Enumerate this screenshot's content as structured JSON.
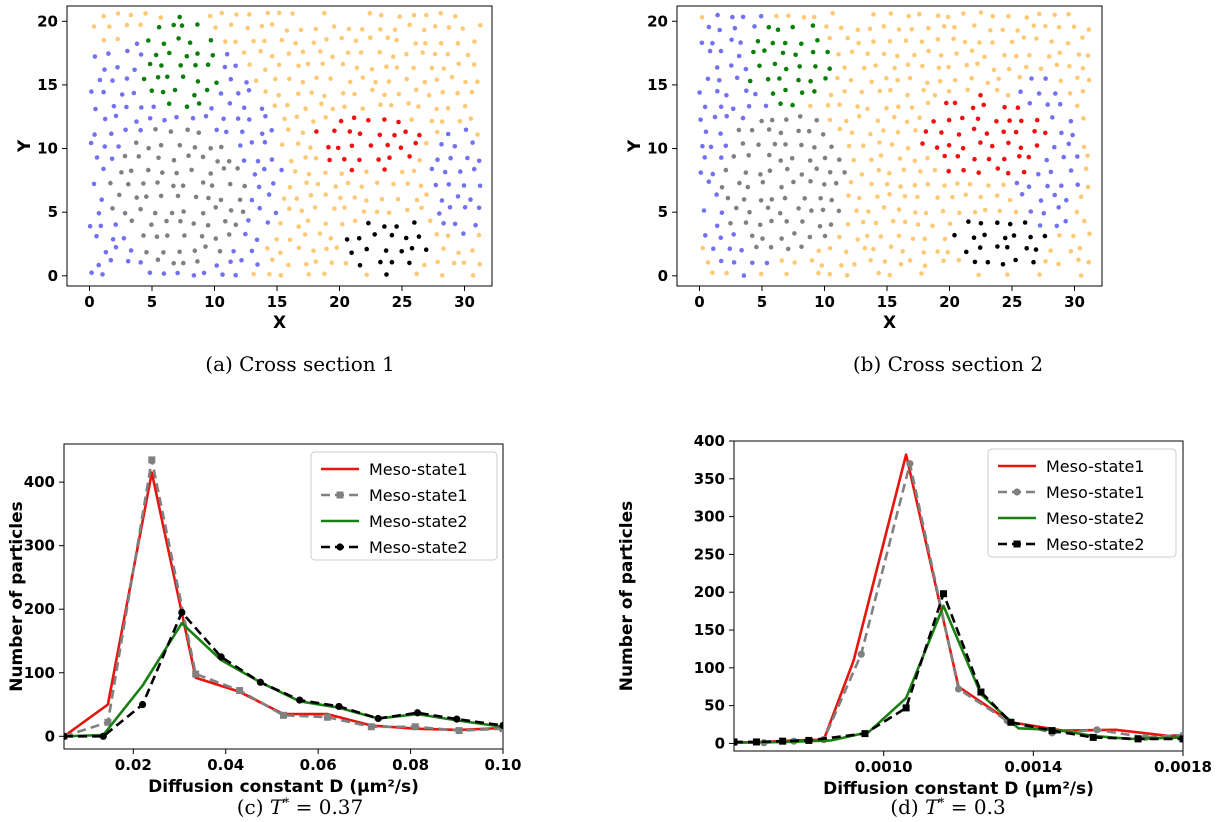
{
  "colors": {
    "blue": "#7272f0",
    "orange": "#ffc874",
    "green": "#0b7f0b",
    "gray": "#808080",
    "red": "#f21010",
    "black": "#000000",
    "line_red": "#e8140e",
    "line_green": "#1a7f12"
  },
  "captions": {
    "a": "(a) Cross section 1",
    "b": "(b) Cross section 2",
    "c_prefix": "(c) ",
    "c_sym": "T",
    "c_sup": "*",
    "c_rest": " = 0.37",
    "d_prefix": "(d) ",
    "d_sym": "T",
    "d_sup": "*",
    "d_rest": " = 0.3"
  },
  "chart_data": [
    {
      "type": "scatter",
      "id": "a",
      "xlabel": "X",
      "ylabel": "Y",
      "xlim": [
        -1.8,
        32.2
      ],
      "ylim": [
        -0.8,
        21.2
      ],
      "xticks": [
        0,
        5,
        10,
        15,
        20,
        25,
        30
      ],
      "yticks": [
        0,
        5,
        10,
        15,
        20
      ],
      "regions": [
        {
          "color": "green",
          "cx": 7.5,
          "cy": 16.5,
          "rx": 3.3,
          "ry": 4.0
        },
        {
          "color": "red",
          "cx": 22.3,
          "cy": 10.6,
          "rx": 4.6,
          "ry": 2.4
        },
        {
          "color": "black",
          "cx": 23.8,
          "cy": 2.5,
          "rx": 3.9,
          "ry": 2.4
        },
        {
          "color": "gray",
          "cx": 7.2,
          "cy": 6.5,
          "rx": 5.6,
          "ry": 5.6
        },
        {
          "color": "blue",
          "cx": 6.0,
          "cy": 8.0,
          "rx": 9.5,
          "ry": 11.5
        },
        {
          "color": "blue",
          "cx": 29.5,
          "cy": 7.5,
          "rx": 2.4,
          "ry": 4.5
        }
      ]
    },
    {
      "type": "scatter",
      "id": "b",
      "xlabel": "X",
      "ylabel": "Y",
      "xlim": [
        -1.8,
        32.2
      ],
      "ylim": [
        -0.8,
        21.2
      ],
      "xticks": [
        0,
        5,
        10,
        15,
        20,
        25,
        30
      ],
      "yticks": [
        0,
        5,
        10,
        15,
        20
      ],
      "regions": [
        {
          "color": "green",
          "cx": 7.3,
          "cy": 16.8,
          "rx": 3.6,
          "ry": 3.6
        },
        {
          "color": "red",
          "cx": 22.8,
          "cy": 10.8,
          "rx": 5.0,
          "ry": 3.6
        },
        {
          "color": "black",
          "cx": 24.0,
          "cy": 2.5,
          "rx": 3.8,
          "ry": 2.4
        },
        {
          "color": "gray",
          "cx": 6.7,
          "cy": 7.3,
          "rx": 5.2,
          "ry": 5.8
        },
        {
          "color": "blue",
          "cx": 3.5,
          "cy": 11.0,
          "rx": 5.0,
          "ry": 11.0
        },
        {
          "color": "blue",
          "cx": 27.5,
          "cy": 9.5,
          "rx": 3.0,
          "ry": 6.5
        }
      ]
    },
    {
      "type": "line",
      "id": "c",
      "xlabel": "Diffusion constant D (μm²/s)",
      "ylabel": "Number of particles",
      "xlim": [
        0.005,
        0.1
      ],
      "ylim": [
        -20,
        460
      ],
      "xticks": [
        0.02,
        0.04,
        0.06,
        0.08,
        0.1
      ],
      "xtick_labels": [
        "0.02",
        "0.04",
        "0.06",
        "0.08",
        "0.10"
      ],
      "yticks": [
        0,
        100,
        200,
        300,
        400
      ],
      "ytick_labels": [
        "0",
        "100",
        "200",
        "300",
        "400"
      ],
      "legend": "top-right",
      "series": [
        {
          "name": "Meso-state1",
          "color": "line_red",
          "dash": false,
          "marker": "none",
          "x": [
            0.005,
            0.0145,
            0.024,
            0.0335,
            0.043,
            0.0525,
            0.062,
            0.0715,
            0.081,
            0.0905,
            0.1
          ],
          "y": [
            0,
            50,
            415,
            92,
            70,
            35,
            35,
            17,
            12,
            10,
            13
          ]
        },
        {
          "name": "Meso-state1",
          "color": "gray",
          "dash": true,
          "marker": "square",
          "x": [
            0.005,
            0.0145,
            0.024,
            0.0335,
            0.043,
            0.0525,
            0.062,
            0.0715,
            0.081,
            0.0905,
            0.1
          ],
          "y": [
            0,
            22,
            435,
            98,
            72,
            33,
            30,
            15,
            15,
            9,
            12
          ]
        },
        {
          "name": "Meso-state2",
          "color": "line_green",
          "dash": false,
          "marker": "none",
          "x": [
            0.005,
            0.0135,
            0.022,
            0.0305,
            0.039,
            0.0475,
            0.056,
            0.0645,
            0.073,
            0.0815,
            0.09,
            0.1
          ],
          "y": [
            0,
            2,
            80,
            178,
            120,
            85,
            55,
            45,
            28,
            35,
            25,
            15
          ]
        },
        {
          "name": "Meso-state2",
          "color": "black",
          "dash": true,
          "marker": "circle",
          "x": [
            0.005,
            0.0135,
            0.022,
            0.0305,
            0.039,
            0.0475,
            0.056,
            0.0645,
            0.073,
            0.0815,
            0.09,
            0.1
          ],
          "y": [
            0,
            0,
            50,
            195,
            125,
            85,
            57,
            47,
            28,
            37,
            27,
            17
          ]
        }
      ]
    },
    {
      "type": "line",
      "id": "d",
      "xlabel": "Diffusion constant D (μm²/s)",
      "ylabel": "Number of particles",
      "xlim": [
        0.0006,
        0.0018
      ],
      "ylim": [
        -10,
        400
      ],
      "xticks": [
        0.001,
        0.0014,
        0.0018
      ],
      "xtick_labels": [
        "0.0010",
        "0.0014",
        "0.0018"
      ],
      "yticks": [
        0,
        50,
        100,
        150,
        200,
        250,
        300,
        350,
        400
      ],
      "ytick_labels": [
        "0",
        "50",
        "100",
        "150",
        "200",
        "250",
        "300",
        "350",
        "400"
      ],
      "legend": "top-right",
      "series": [
        {
          "name": "Meso-state1",
          "color": "line_red",
          "dash": false,
          "marker": "none",
          "x": [
            0.0006,
            0.00068,
            0.00076,
            0.00084,
            0.00092,
            0.00106,
            0.0012,
            0.00134,
            0.00148,
            0.00162,
            0.00176,
            0.0018
          ],
          "y": [
            1,
            2,
            4,
            5,
            110,
            382,
            75,
            28,
            17,
            18,
            10,
            11
          ]
        },
        {
          "name": "Meso-state1",
          "color": "gray",
          "dash": true,
          "marker": "circle",
          "x": [
            0.0006,
            0.00068,
            0.00076,
            0.00084,
            0.00094,
            0.00107,
            0.0012,
            0.00133,
            0.00145,
            0.00157,
            0.0017,
            0.0018
          ],
          "y": [
            1,
            1,
            3,
            5,
            118,
            370,
            72,
            30,
            14,
            18,
            8,
            11
          ]
        },
        {
          "name": "Meso-state2",
          "color": "line_green",
          "dash": false,
          "marker": "none",
          "x": [
            0.0006,
            0.00074,
            0.00086,
            0.00096,
            0.00106,
            0.00116,
            0.00126,
            0.00136,
            0.00146,
            0.00156,
            0.00166,
            0.0018
          ],
          "y": [
            1,
            2,
            4,
            15,
            60,
            182,
            65,
            20,
            18,
            10,
            6,
            8
          ]
        },
        {
          "name": "Meso-state2",
          "color": "black",
          "dash": true,
          "marker": "square",
          "x": [
            0.0006,
            0.00066,
            0.00073,
            0.0008,
            0.00095,
            0.00106,
            0.00116,
            0.00126,
            0.00134,
            0.00145,
            0.00156,
            0.00168,
            0.0018
          ],
          "y": [
            2,
            2,
            3,
            4,
            13,
            47,
            198,
            68,
            28,
            17,
            8,
            6,
            6
          ]
        }
      ]
    }
  ]
}
